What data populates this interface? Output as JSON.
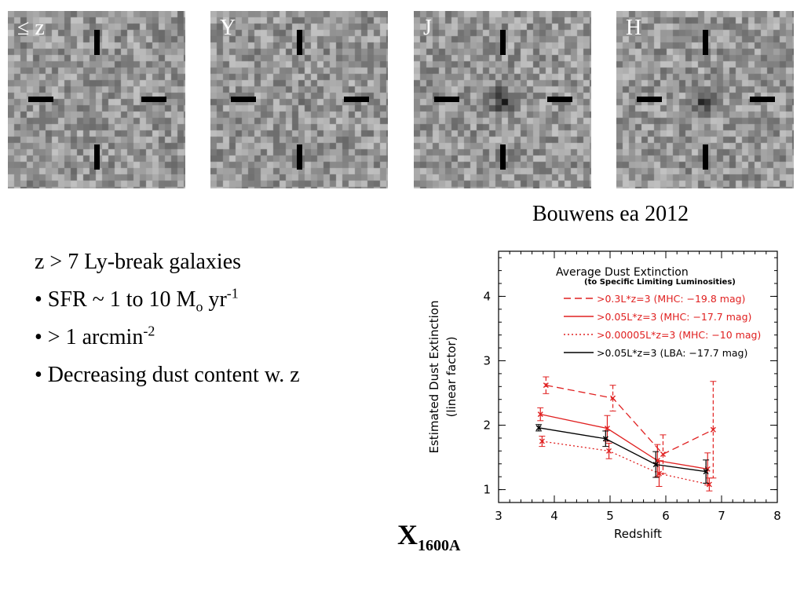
{
  "stamps": [
    {
      "label": "≤ z",
      "source_blob": 0.0
    },
    {
      "label": "Y",
      "source_blob": 0.05
    },
    {
      "label": "J",
      "source_blob": 0.75
    },
    {
      "label": "H",
      "source_blob": 0.65
    }
  ],
  "citation": "Bouwens ea 2012",
  "bullets": {
    "line1": "z > 7 Ly-break galaxies",
    "line2_pre": "• SFR ~ 1 to 10 M",
    "line2_sub": "o",
    "line2_mid": " yr",
    "line2_sup": "-1",
    "line3_pre": "• > 1 arcmin",
    "line3_sup": "-2",
    "line4": "• Decreasing dust content w. z"
  },
  "big_label": {
    "main": "X",
    "sub": "1600A"
  },
  "chart_data": {
    "type": "line",
    "title": "Average Dust Extinction",
    "subtitle": "(to Specific Limiting Luminosities)",
    "xlabel": "Redshift",
    "ylabel_line1": "Estimated Dust Extinction",
    "ylabel_line2": "(linear factor)",
    "xlim": [
      3,
      8
    ],
    "ylim": [
      0.8,
      4.7
    ],
    "xticks": [
      3,
      4,
      5,
      6,
      7,
      8
    ],
    "yticks": [
      1,
      2,
      3,
      4
    ],
    "series": [
      {
        "name": ">0.3L*z=3 (MHC: −19.8 mag)",
        "color": "#e02020",
        "style": "dashed",
        "marker": "x",
        "x": [
          3.85,
          5.05,
          5.95,
          6.85
        ],
        "y": [
          2.62,
          2.42,
          1.55,
          1.93
        ],
        "err": [
          0.13,
          0.2,
          0.3,
          0.75
        ]
      },
      {
        "name": ">0.05L*z=3 (MHC: −17.7 mag)",
        "color": "#e02020",
        "style": "solid",
        "marker": "x",
        "x": [
          3.75,
          4.95,
          5.85,
          6.75
        ],
        "y": [
          2.17,
          1.95,
          1.45,
          1.32
        ],
        "err": [
          0.1,
          0.2,
          0.25,
          0.25
        ]
      },
      {
        "name": ">0.00005L*z=3 (MHC: −10 mag)",
        "color": "#e02020",
        "style": "dotted",
        "marker": "x",
        "x": [
          3.78,
          4.98,
          5.88,
          6.78
        ],
        "y": [
          1.75,
          1.6,
          1.25,
          1.08
        ],
        "err": [
          0.08,
          0.12,
          0.2,
          0.1
        ]
      },
      {
        "name": ">0.05L*z=3 (LBA: −17.7 mag)",
        "color": "#000000",
        "style": "solid",
        "marker": "x",
        "x": [
          3.72,
          4.92,
          5.82,
          6.72
        ],
        "y": [
          1.96,
          1.79,
          1.39,
          1.28
        ],
        "err": [
          0.05,
          0.12,
          0.2,
          0.18
        ]
      }
    ]
  }
}
